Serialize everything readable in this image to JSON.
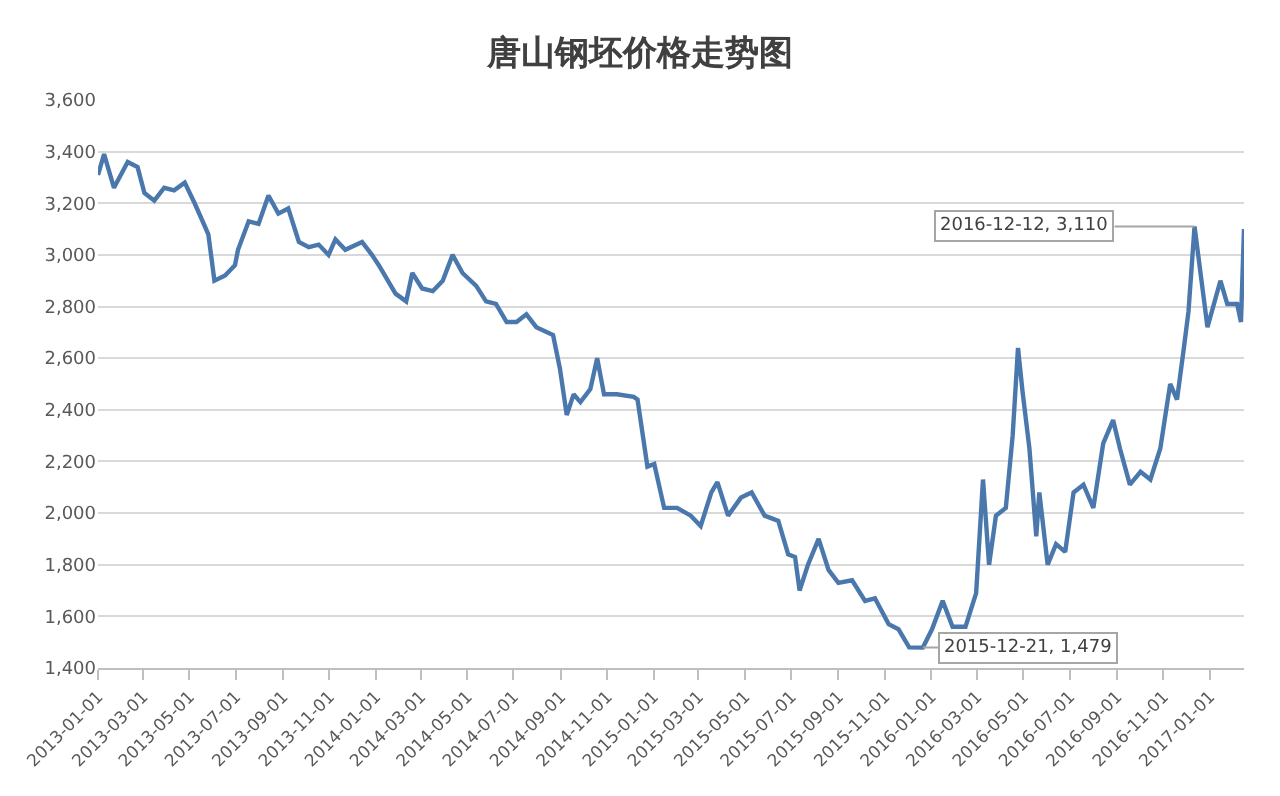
{
  "chart_data": {
    "type": "line",
    "title": "唐山钢坯价格走势图",
    "x": [
      "2013-01-01",
      "2013-01-09",
      "2013-01-22",
      "2013-02-09",
      "2013-02-22",
      "2013-03-03",
      "2013-03-16",
      "2013-03-29",
      "2013-04-11",
      "2013-04-25",
      "2013-05-08",
      "2013-05-17",
      "2013-05-26",
      "2013-06-03",
      "2013-06-17",
      "2013-06-30",
      "2013-07-04",
      "2013-07-18",
      "2013-07-31",
      "2013-08-13",
      "2013-08-26",
      "2013-09-08",
      "2013-09-22",
      "2013-10-05",
      "2013-10-18",
      "2013-10-31",
      "2013-11-09",
      "2013-11-22",
      "2013-12-14",
      "2013-12-27",
      "2014-01-05",
      "2014-01-27",
      "2014-02-10",
      "2014-02-18",
      "2014-03-03",
      "2014-03-17",
      "2014-03-30",
      "2014-04-12",
      "2014-04-25",
      "2014-05-13",
      "2014-05-26",
      "2014-06-08",
      "2014-06-22",
      "2014-07-05",
      "2014-07-18",
      "2014-07-31",
      "2014-08-22",
      "2014-08-31",
      "2014-09-09",
      "2014-09-18",
      "2014-09-27",
      "2014-10-10",
      "2014-10-19",
      "2014-10-28",
      "2014-11-14",
      "2014-12-06",
      "2014-12-11",
      "2014-12-24",
      "2015-01-02",
      "2015-01-15",
      "2015-02-01",
      "2015-02-19",
      "2015-03-04",
      "2015-03-18",
      "2015-03-26",
      "2015-04-09",
      "2015-04-26",
      "2015-05-10",
      "2015-05-27",
      "2015-06-14",
      "2015-06-27",
      "2015-07-06",
      "2015-07-12",
      "2015-07-23",
      "2015-08-06",
      "2015-08-19",
      "2015-09-01",
      "2015-09-19",
      "2015-10-06",
      "2015-10-19",
      "2015-11-06",
      "2015-11-19",
      "2015-12-03",
      "2015-12-21",
      "2016-01-02",
      "2016-01-16",
      "2016-01-29",
      "2016-02-15",
      "2016-02-29",
      "2016-03-09",
      "2016-03-17",
      "2016-03-26",
      "2016-04-08",
      "2016-04-17",
      "2016-04-24",
      "2016-04-30",
      "2016-05-09",
      "2016-05-18",
      "2016-05-22",
      "2016-06-02",
      "2016-06-13",
      "2016-06-25",
      "2016-07-06",
      "2016-07-19",
      "2016-08-01",
      "2016-08-14",
      "2016-08-27",
      "2016-09-05",
      "2016-09-18",
      "2016-10-02",
      "2016-10-15",
      "2016-10-28",
      "2016-11-10",
      "2016-11-19",
      "2016-11-28",
      "2016-12-04",
      "2016-12-12",
      "2016-12-29",
      "2017-01-15",
      "2017-01-24",
      "2017-02-06",
      "2017-02-11",
      "2017-02-15"
    ],
    "series": [
      {
        "color": "#4a78ad",
        "values": [
          3310,
          3390,
          3260,
          3360,
          3340,
          3240,
          3210,
          3260,
          3250,
          3280,
          3200,
          3140,
          3080,
          2900,
          2920,
          2960,
          3020,
          3130,
          3120,
          3230,
          3160,
          3180,
          3050,
          3030,
          3040,
          3000,
          3060,
          3020,
          3050,
          3000,
          2960,
          2850,
          2820,
          2930,
          2870,
          2860,
          2900,
          3000,
          2930,
          2880,
          2820,
          2810,
          2740,
          2740,
          2770,
          2720,
          2690,
          2560,
          2380,
          2460,
          2430,
          2480,
          2600,
          2460,
          2460,
          2450,
          2440,
          2180,
          2190,
          2020,
          2020,
          1990,
          1950,
          2080,
          2120,
          1990,
          2060,
          2080,
          1990,
          1970,
          1840,
          1830,
          1700,
          1800,
          1900,
          1780,
          1730,
          1740,
          1660,
          1670,
          1570,
          1550,
          1480,
          1479,
          1550,
          1660,
          1560,
          1560,
          1690,
          2130,
          1800,
          1990,
          2020,
          2300,
          2640,
          2470,
          2250,
          1910,
          2080,
          1800,
          1880,
          1850,
          2080,
          2110,
          2020,
          2270,
          2360,
          2250,
          2110,
          2160,
          2130,
          2250,
          2500,
          2440,
          2640,
          2780,
          3110,
          2720,
          2900,
          2810,
          2810,
          2740,
          3100
        ]
      }
    ],
    "xlim": [
      "2013-01-01",
      "2017-02-15"
    ],
    "xticks": [
      {
        "value": "2013-01-01",
        "label": "2013-01-01"
      },
      {
        "value": "2013-03-01",
        "label": "2013-03-01"
      },
      {
        "value": "2013-05-01",
        "label": "2013-05-01"
      },
      {
        "value": "2013-07-01",
        "label": "2013-07-01"
      },
      {
        "value": "2013-09-01",
        "label": "2013-09-01"
      },
      {
        "value": "2013-11-01",
        "label": "2013-11-01"
      },
      {
        "value": "2014-01-01",
        "label": "2014-01-01"
      },
      {
        "value": "2014-03-01",
        "label": "2014-03-01"
      },
      {
        "value": "2014-05-01",
        "label": "2014-05-01"
      },
      {
        "value": "2014-07-01",
        "label": "2014-07-01"
      },
      {
        "value": "2014-09-01",
        "label": "2014-09-01"
      },
      {
        "value": "2014-11-01",
        "label": "2014-11-01"
      },
      {
        "value": "2015-01-01",
        "label": "2015-01-01"
      },
      {
        "value": "2015-03-01",
        "label": "2015-03-01"
      },
      {
        "value": "2015-05-01",
        "label": "2015-05-01"
      },
      {
        "value": "2015-07-01",
        "label": "2015-07-01"
      },
      {
        "value": "2015-09-01",
        "label": "2015-09-01"
      },
      {
        "value": "2015-11-01",
        "label": "2015-11-01"
      },
      {
        "value": "2016-01-01",
        "label": "2016-01-01"
      },
      {
        "value": "2016-03-01",
        "label": "2016-03-01"
      },
      {
        "value": "2016-05-01",
        "label": "2016-05-01"
      },
      {
        "value": "2016-07-01",
        "label": "2016-07-01"
      },
      {
        "value": "2016-09-01",
        "label": "2016-09-01"
      },
      {
        "value": "2016-11-01",
        "label": "2016-11-01"
      },
      {
        "value": "2017-01-01",
        "label": "2017-01-01"
      }
    ],
    "ylim": [
      1400,
      3600
    ],
    "yticks": [
      {
        "value": 1400,
        "label": "1,400"
      },
      {
        "value": 1600,
        "label": "1,600"
      },
      {
        "value": 1800,
        "label": "1,800"
      },
      {
        "value": 2000,
        "label": "2,000"
      },
      {
        "value": 2200,
        "label": "2,200"
      },
      {
        "value": 2400,
        "label": "2,400"
      },
      {
        "value": 2600,
        "label": "2,600"
      },
      {
        "value": 2800,
        "label": "2,800"
      },
      {
        "value": 3000,
        "label": "3,000"
      },
      {
        "value": 3200,
        "label": "3,200"
      },
      {
        "value": 3400,
        "label": "3,400"
      },
      {
        "value": 3600,
        "label": "3,600"
      }
    ],
    "grid": "y",
    "legend": false,
    "marker": "none",
    "line_style": "solid",
    "annotations": [
      {
        "text": "2016-12-12, 3,110",
        "x": "2016-12-12",
        "y": 3110
      },
      {
        "text": "2015-12-21, 1,479",
        "x": "2015-12-21",
        "y": 1479
      }
    ]
  }
}
